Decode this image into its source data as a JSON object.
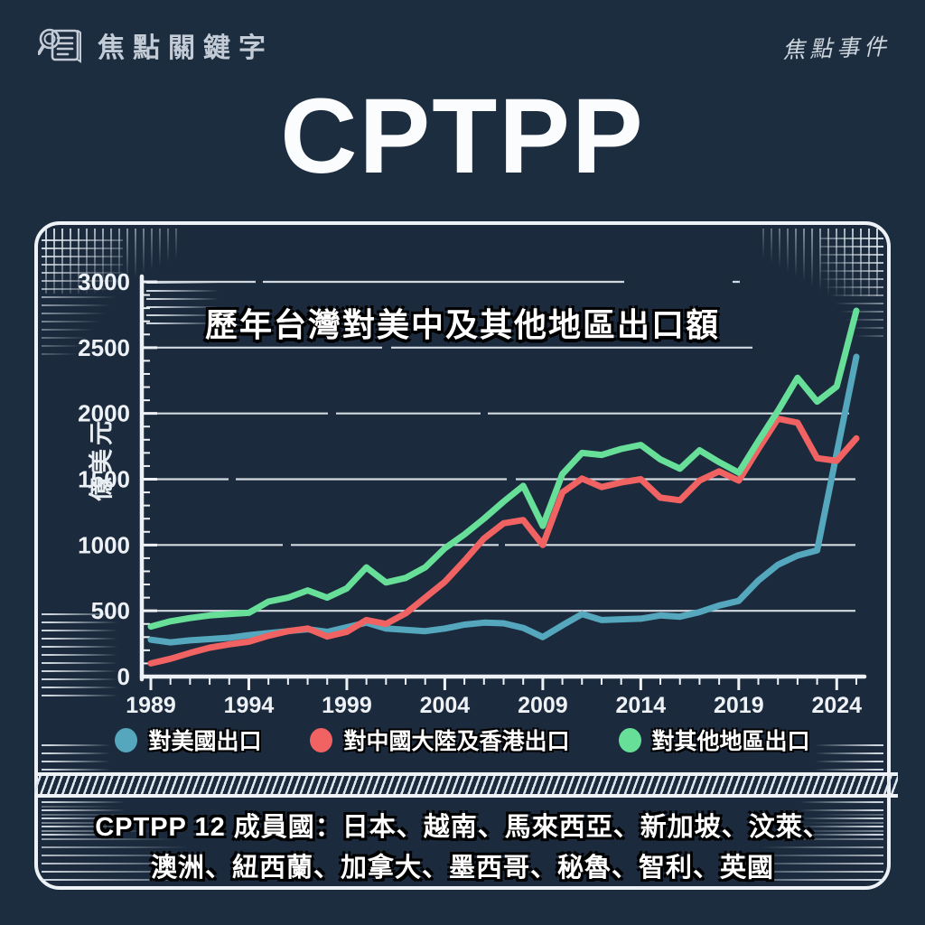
{
  "header": {
    "brand": "焦點關鍵字",
    "brand_icon": "magnifier-document-icon",
    "watermark": "焦點事件"
  },
  "title": "CPTPP",
  "chart_data": {
    "type": "line",
    "title": "歷年台灣對美中及其他地區出口額",
    "ylabel": "億美元",
    "ylim": [
      0,
      3000
    ],
    "ytick_step": 500,
    "ytick_labels": [
      "0",
      "500",
      "1000",
      "1500",
      "2000",
      "2500",
      "3000"
    ],
    "grid": true,
    "legend_position": "bottom",
    "x_start": 1989,
    "x_end": 2025,
    "xticks_labeled": [
      1989,
      1994,
      1999,
      2004,
      2009,
      2014,
      2019,
      2024
    ],
    "x": [
      1989,
      1990,
      1991,
      1992,
      1993,
      1994,
      1995,
      1996,
      1997,
      1998,
      1999,
      2000,
      2001,
      2002,
      2003,
      2004,
      2005,
      2006,
      2007,
      2008,
      2009,
      2010,
      2011,
      2012,
      2013,
      2014,
      2015,
      2016,
      2017,
      2018,
      2019,
      2020,
      2021,
      2022,
      2023,
      2024,
      2025
    ],
    "series": [
      {
        "name": "對美國出口",
        "color": "#54a7bc",
        "values": [
          280,
          260,
          275,
          285,
          295,
          315,
          330,
          345,
          360,
          340,
          375,
          410,
          365,
          355,
          345,
          365,
          395,
          410,
          405,
          370,
          300,
          390,
          475,
          430,
          435,
          440,
          465,
          455,
          490,
          540,
          575,
          730,
          850,
          920,
          960,
          1700,
          2430
        ]
      },
      {
        "name": "對中國大陸及香港出口",
        "color": "#f06362",
        "values": [
          100,
          135,
          180,
          220,
          245,
          265,
          310,
          345,
          365,
          305,
          340,
          430,
          400,
          480,
          600,
          720,
          880,
          1050,
          1165,
          1190,
          1000,
          1400,
          1505,
          1440,
          1475,
          1500,
          1360,
          1340,
          1490,
          1560,
          1490,
          1730,
          1960,
          1930,
          1660,
          1640,
          1810
        ]
      },
      {
        "name": "對其他地區出口",
        "color": "#67df99",
        "values": [
          380,
          420,
          445,
          465,
          475,
          485,
          570,
          600,
          655,
          600,
          670,
          830,
          715,
          750,
          830,
          975,
          1080,
          1200,
          1330,
          1450,
          1145,
          1540,
          1700,
          1685,
          1730,
          1760,
          1650,
          1580,
          1720,
          1630,
          1550,
          1790,
          2020,
          2270,
          2090,
          2205,
          2780
        ]
      }
    ]
  },
  "footer": {
    "line1": "CPTPP 12 成員國：日本、越南、馬來西亞、新加坡、汶萊、",
    "line2": "澳洲、紐西蘭、加拿大、墨西哥、秘魯、智利、英國"
  }
}
